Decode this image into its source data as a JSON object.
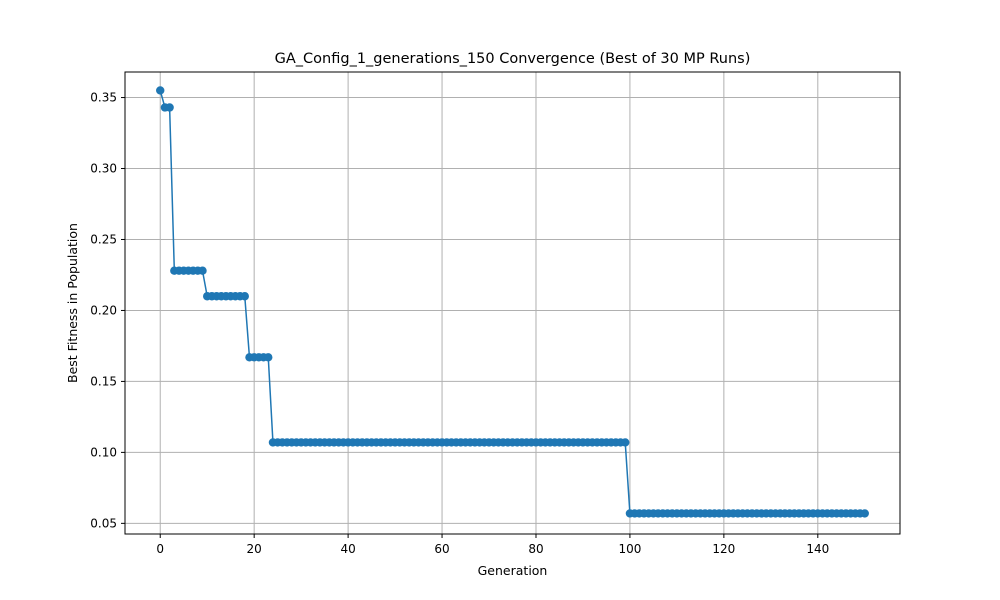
{
  "chart_data": {
    "type": "line",
    "title": "GA_Config_1_generations_150 Convergence (Best of 30 MP Runs)",
    "xlabel": "Generation",
    "ylabel": "Best Fitness in Population",
    "xlim": [
      -7.5,
      157.5
    ],
    "ylim": [
      0.0425,
      0.368
    ],
    "xticks": [
      0,
      20,
      40,
      60,
      80,
      100,
      120,
      140
    ],
    "xtick_labels": [
      "0",
      "20",
      "40",
      "60",
      "80",
      "100",
      "120",
      "140"
    ],
    "yticks": [
      0.05,
      0.1,
      0.15,
      0.2,
      0.25,
      0.3,
      0.35
    ],
    "ytick_labels": [
      "0.05",
      "0.10",
      "0.15",
      "0.20",
      "0.25",
      "0.30",
      "0.35"
    ],
    "grid": true,
    "marker": "circle",
    "series_color": "#1f77b4",
    "series": [
      {
        "segments": [
          {
            "x_start": 0,
            "x_end": 0,
            "y": 0.355
          },
          {
            "x_start": 1,
            "x_end": 2,
            "y": 0.343
          },
          {
            "x_start": 3,
            "x_end": 9,
            "y": 0.228
          },
          {
            "x_start": 10,
            "x_end": 18,
            "y": 0.21
          },
          {
            "x_start": 19,
            "x_end": 23,
            "y": 0.167
          },
          {
            "x_start": 24,
            "x_end": 99,
            "y": 0.107
          },
          {
            "x_start": 100,
            "x_end": 150,
            "y": 0.057
          }
        ]
      }
    ]
  }
}
